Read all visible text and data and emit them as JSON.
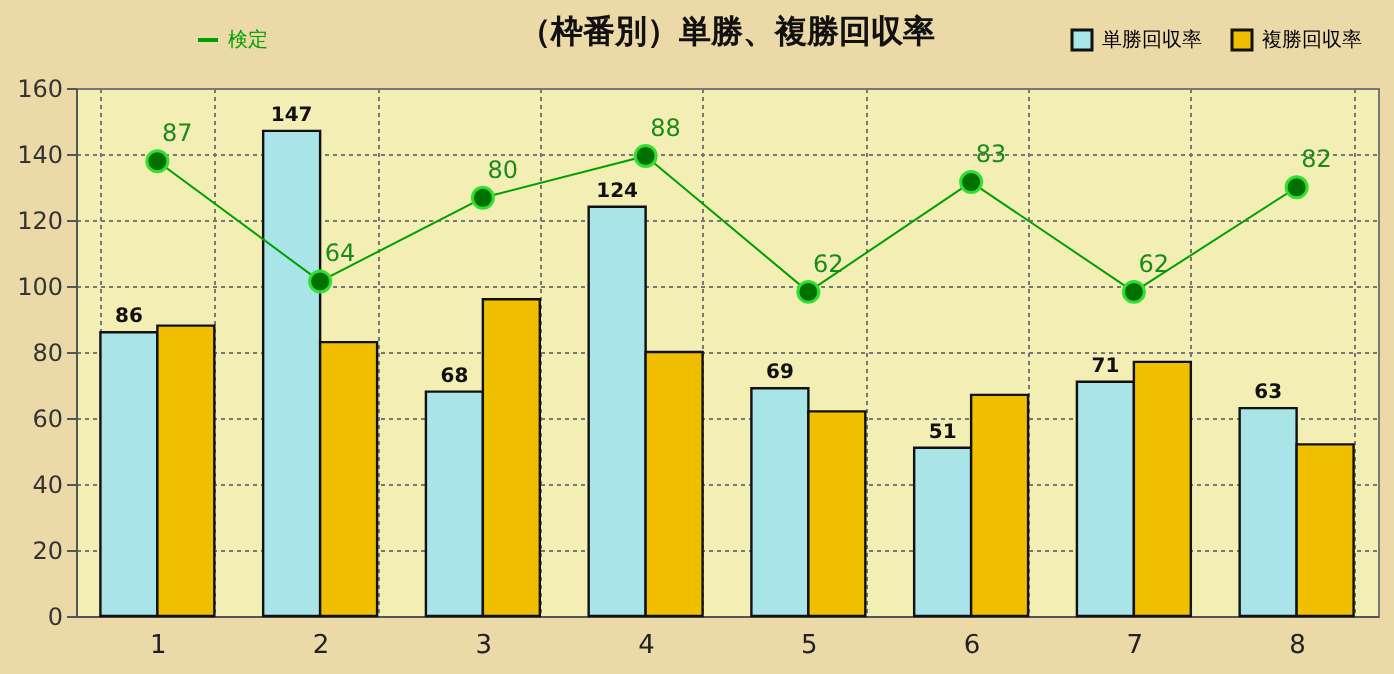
{
  "chart_data": {
    "type": "bar",
    "title": "（枠番別）単勝、複勝回収率",
    "categories": [
      "1",
      "2",
      "3",
      "4",
      "5",
      "6",
      "7",
      "8"
    ],
    "series": [
      {
        "name": "単勝回収率",
        "color": "#a8e4e8",
        "values": [
          86,
          147,
          68,
          124,
          69,
          51,
          71,
          63
        ],
        "value_labels": [
          "86",
          "147",
          "68",
          "124",
          "69",
          "51",
          "71",
          "63"
        ]
      },
      {
        "name": "複勝回収率",
        "color": "#f0c000",
        "values": [
          88,
          83,
          96,
          80,
          62,
          67,
          77,
          52
        ]
      },
      {
        "name": "検定",
        "type": "line",
        "axis": "y2",
        "color": "#00a000",
        "marker": "circle",
        "values": [
          87,
          64,
          80,
          88,
          62,
          83,
          62,
          82
        ],
        "value_labels": [
          "87",
          "64",
          "80",
          "88",
          "62",
          "83",
          "62",
          "82"
        ]
      }
    ],
    "ylim": [
      0,
      160
    ],
    "yticks": [
      0,
      20,
      40,
      60,
      80,
      100,
      120,
      140,
      160
    ],
    "y2lim": [
      0,
      101
    ],
    "tick_labels": "xy",
    "grid": true,
    "legend": "top"
  }
}
